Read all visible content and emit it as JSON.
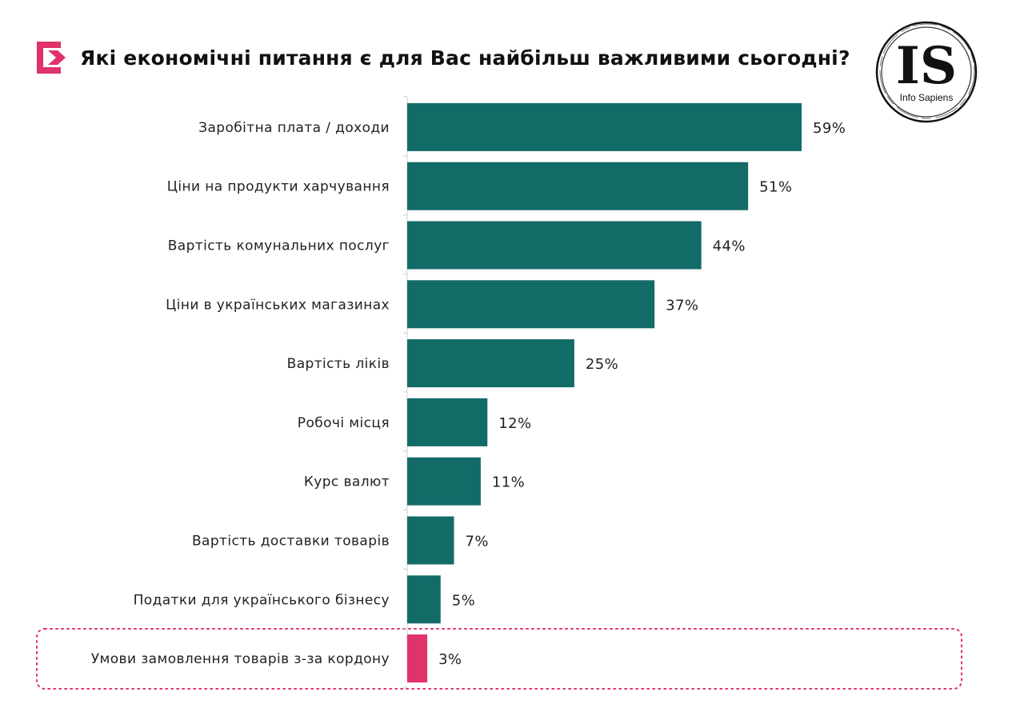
{
  "title": "Які економічні питання є для Вас найбільш важливими сьогодні?",
  "logo": {
    "letters": "IS",
    "caption": "Info Sapiens"
  },
  "colors": {
    "bar": "#136B68",
    "highlight": "#E0336A",
    "accent": "#E0336A"
  },
  "chart_data": {
    "type": "bar",
    "orientation": "horizontal",
    "categories": [
      "Заробітна плата / доходи",
      "Ціни на продукти харчування",
      "Вартість комунальних послуг",
      "Ціни в українських магазинах",
      "Вартість ліків",
      "Робочі місця",
      "Курс валют",
      "Вартість доставки товарів",
      "Податки для українського бізнесу",
      "Умови замовлення товарів з-за кордону"
    ],
    "values": [
      59,
      51,
      44,
      37,
      25,
      12,
      11,
      7,
      5,
      3
    ],
    "value_labels": [
      "59%",
      "51%",
      "44%",
      "37%",
      "25%",
      "12%",
      "11%",
      "7%",
      "5%",
      "3%"
    ],
    "highlighted_index": 9,
    "xlim": [
      0,
      100
    ],
    "grid": false,
    "legend": "none"
  }
}
